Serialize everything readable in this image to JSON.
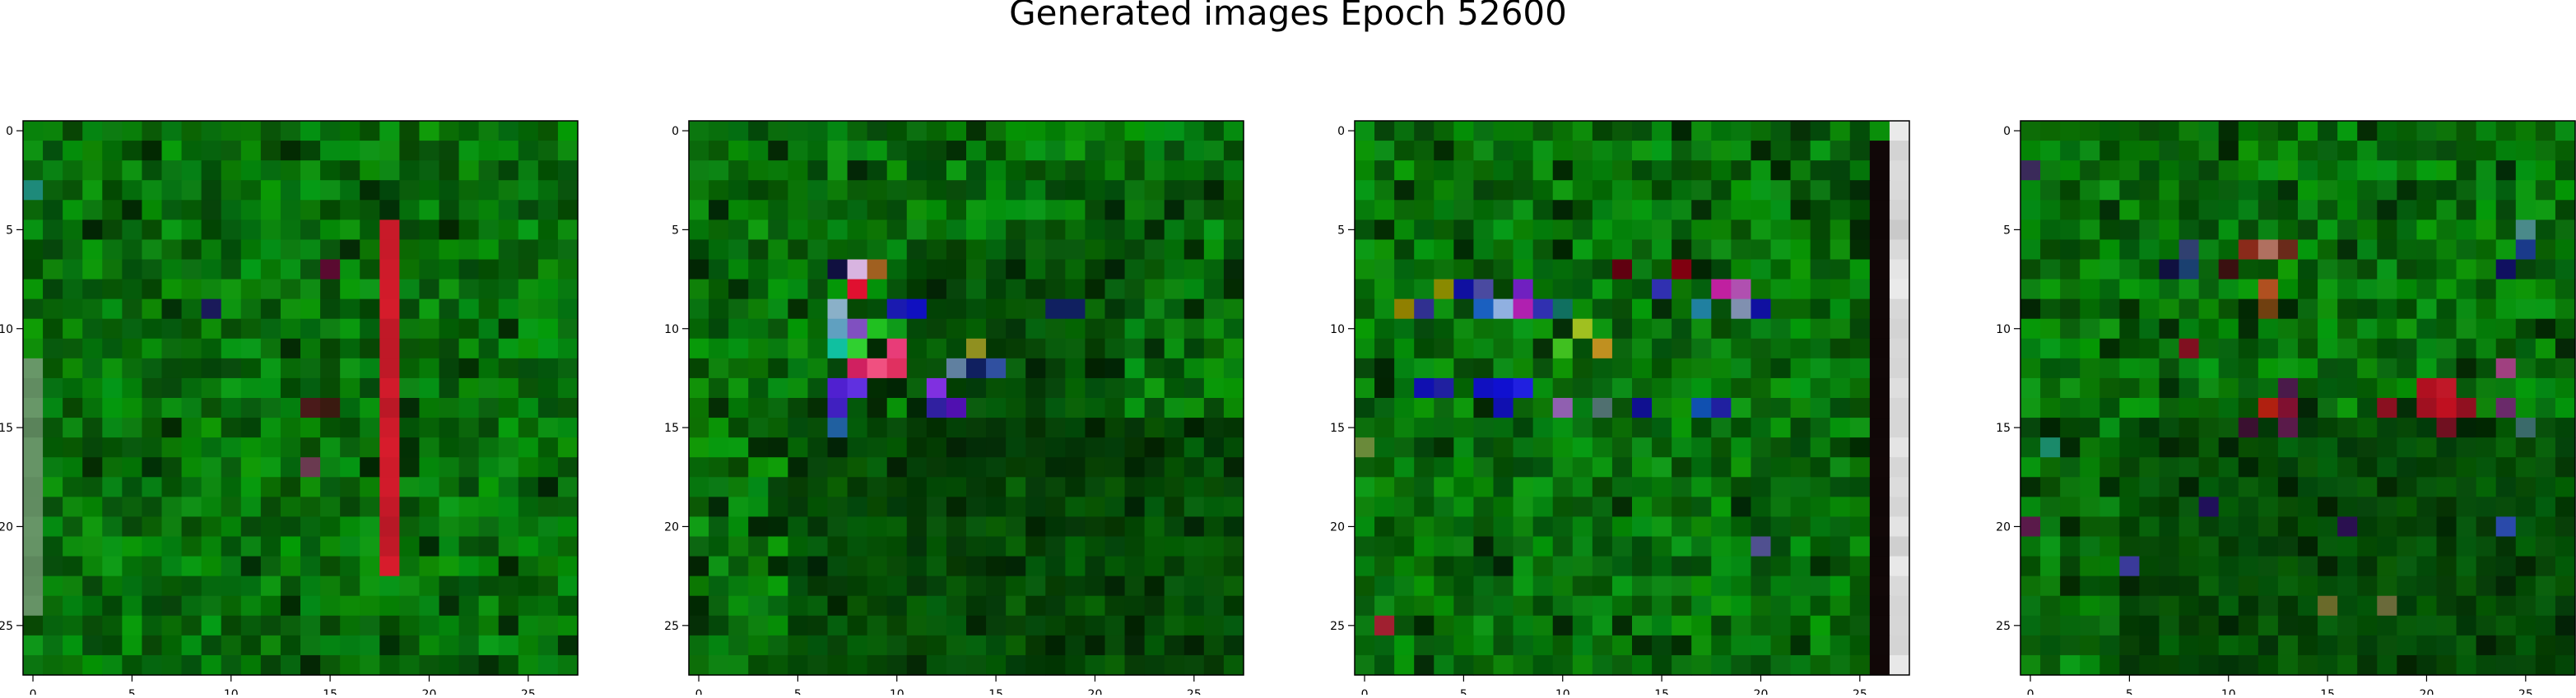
{
  "chart_data": {
    "type": "heatmap",
    "title": "Generated images Epoch 52600",
    "grid": false,
    "image_size": 28,
    "x_ticks": [
      0,
      5,
      10,
      15,
      20,
      25
    ],
    "y_ticks": [
      0,
      5,
      10,
      15,
      20,
      25
    ],
    "xlim": [
      -0.5,
      27.5
    ],
    "ylim": [
      27.5,
      -0.5
    ],
    "colors": {
      "base_green": "#0a5a0a",
      "bright_green": "#12a412",
      "red": "#e01828",
      "blue": "#1010c8",
      "magenta": "#e03c78",
      "pale_pink": "#d8b4e0",
      "white_column": "#eeeeee"
    },
    "panels": [
      {
        "name": "image-1",
        "features": [
          {
            "kind": "column",
            "x": 18,
            "y_from": 5,
            "y_to": 22,
            "color": "#d81c2c"
          },
          {
            "kind": "column",
            "x": 0,
            "y_from": 12,
            "y_to": 24,
            "color": "#6a9a6a"
          },
          {
            "kind": "cell",
            "x": 0,
            "y": 3,
            "color": "#1e8a7a"
          },
          {
            "kind": "cell",
            "x": 14,
            "y": 14,
            "color": "#4a1a1a"
          },
          {
            "kind": "cell",
            "x": 15,
            "y": 14,
            "color": "#3a1a10"
          },
          {
            "kind": "cell",
            "x": 14,
            "y": 17,
            "color": "#6a3a50"
          },
          {
            "kind": "cell",
            "x": 15,
            "y": 7,
            "color": "#5a0a30"
          },
          {
            "kind": "cell",
            "x": 9,
            "y": 9,
            "color": "#1a1a5a"
          }
        ]
      },
      {
        "name": "image-2",
        "features": [
          {
            "kind": "cell",
            "x": 8,
            "y": 7,
            "color": "#d8b4e0"
          },
          {
            "kind": "cell",
            "x": 7,
            "y": 7,
            "color": "#101040"
          },
          {
            "kind": "cell",
            "x": 9,
            "y": 7,
            "color": "#a06020"
          },
          {
            "kind": "cell",
            "x": 8,
            "y": 8,
            "color": "#e01030"
          },
          {
            "kind": "cell",
            "x": 7,
            "y": 9,
            "color": "#8ab0c8"
          },
          {
            "kind": "cell",
            "x": 10,
            "y": 9,
            "color": "#1a1ab0"
          },
          {
            "kind": "cell",
            "x": 11,
            "y": 9,
            "color": "#1010c0"
          },
          {
            "kind": "cell",
            "x": 7,
            "y": 10,
            "color": "#60a0c0"
          },
          {
            "kind": "cell",
            "x": 8,
            "y": 10,
            "color": "#8050c0"
          },
          {
            "kind": "cell",
            "x": 9,
            "y": 10,
            "color": "#20c020"
          },
          {
            "kind": "cell",
            "x": 7,
            "y": 11,
            "color": "#10c0a0"
          },
          {
            "kind": "cell",
            "x": 8,
            "y": 11,
            "color": "#30d030"
          },
          {
            "kind": "cell",
            "x": 10,
            "y": 11,
            "color": "#e83c78"
          },
          {
            "kind": "cell",
            "x": 8,
            "y": 12,
            "color": "#d02060"
          },
          {
            "kind": "cell",
            "x": 9,
            "y": 12,
            "color": "#f05080"
          },
          {
            "kind": "cell",
            "x": 10,
            "y": 12,
            "color": "#e03060"
          },
          {
            "kind": "cell",
            "x": 7,
            "y": 13,
            "color": "#5020d0"
          },
          {
            "kind": "cell",
            "x": 8,
            "y": 13,
            "color": "#6030e0"
          },
          {
            "kind": "cell",
            "x": 7,
            "y": 14,
            "color": "#4020c0"
          },
          {
            "kind": "cell",
            "x": 12,
            "y": 13,
            "color": "#8030e0"
          },
          {
            "kind": "cell",
            "x": 13,
            "y": 12,
            "color": "#6080a0"
          },
          {
            "kind": "cell",
            "x": 14,
            "y": 12,
            "color": "#102060"
          },
          {
            "kind": "cell",
            "x": 13,
            "y": 14,
            "color": "#5010b0"
          },
          {
            "kind": "cell",
            "x": 12,
            "y": 14,
            "color": "#3020a0"
          },
          {
            "kind": "cell",
            "x": 14,
            "y": 11,
            "color": "#909020"
          },
          {
            "kind": "cell",
            "x": 15,
            "y": 12,
            "color": "#3050a0"
          },
          {
            "kind": "cell",
            "x": 7,
            "y": 15,
            "color": "#2060a0"
          },
          {
            "kind": "cell",
            "x": 18,
            "y": 9,
            "color": "#102060"
          },
          {
            "kind": "cell",
            "x": 19,
            "y": 9,
            "color": "#102060"
          }
        ]
      },
      {
        "name": "image-3",
        "features": [
          {
            "kind": "column",
            "x": 27,
            "y_from": 0,
            "y_to": 27,
            "color": "#ececec"
          },
          {
            "kind": "column",
            "x": 26,
            "y_from": 1,
            "y_to": 27,
            "color": "#120808"
          },
          {
            "kind": "cell",
            "x": 2,
            "y": 9,
            "color": "#908000"
          },
          {
            "kind": "cell",
            "x": 3,
            "y": 9,
            "color": "#303090"
          },
          {
            "kind": "cell",
            "x": 4,
            "y": 8,
            "color": "#8a8a00"
          },
          {
            "kind": "cell",
            "x": 5,
            "y": 8,
            "color": "#1010a0"
          },
          {
            "kind": "cell",
            "x": 6,
            "y": 8,
            "color": "#4a4aa0"
          },
          {
            "kind": "cell",
            "x": 6,
            "y": 9,
            "color": "#1a60c0"
          },
          {
            "kind": "cell",
            "x": 7,
            "y": 9,
            "color": "#90b0e0"
          },
          {
            "kind": "cell",
            "x": 8,
            "y": 8,
            "color": "#7020c0"
          },
          {
            "kind": "cell",
            "x": 8,
            "y": 9,
            "color": "#b020b0"
          },
          {
            "kind": "cell",
            "x": 9,
            "y": 9,
            "color": "#3030b0"
          },
          {
            "kind": "cell",
            "x": 10,
            "y": 9,
            "color": "#107060"
          },
          {
            "kind": "cell",
            "x": 11,
            "y": 10,
            "color": "#a0c020"
          },
          {
            "kind": "cell",
            "x": 10,
            "y": 11,
            "color": "#40c020"
          },
          {
            "kind": "cell",
            "x": 12,
            "y": 11,
            "color": "#c09020"
          },
          {
            "kind": "cell",
            "x": 15,
            "y": 8,
            "color": "#3030b0"
          },
          {
            "kind": "cell",
            "x": 18,
            "y": 8,
            "color": "#c020a0"
          },
          {
            "kind": "cell",
            "x": 19,
            "y": 8,
            "color": "#b050b0"
          },
          {
            "kind": "cell",
            "x": 19,
            "y": 9,
            "color": "#8090b0"
          },
          {
            "kind": "cell",
            "x": 20,
            "y": 9,
            "color": "#1010a0"
          },
          {
            "kind": "cell",
            "x": 17,
            "y": 9,
            "color": "#2080a0"
          },
          {
            "kind": "cell",
            "x": 13,
            "y": 7,
            "color": "#600010"
          },
          {
            "kind": "cell",
            "x": 16,
            "y": 7,
            "color": "#800010"
          },
          {
            "kind": "cell",
            "x": 3,
            "y": 13,
            "color": "#1010b0"
          },
          {
            "kind": "cell",
            "x": 4,
            "y": 13,
            "color": "#2020a0"
          },
          {
            "kind": "cell",
            "x": 6,
            "y": 13,
            "color": "#1010c0"
          },
          {
            "kind": "cell",
            "x": 7,
            "y": 13,
            "color": "#1010d0"
          },
          {
            "kind": "cell",
            "x": 8,
            "y": 13,
            "color": "#2020e0"
          },
          {
            "kind": "cell",
            "x": 7,
            "y": 14,
            "color": "#1010b0"
          },
          {
            "kind": "cell",
            "x": 10,
            "y": 14,
            "color": "#9060b0"
          },
          {
            "kind": "cell",
            "x": 12,
            "y": 14,
            "color": "#507070"
          },
          {
            "kind": "cell",
            "x": 14,
            "y": 14,
            "color": "#101090"
          },
          {
            "kind": "cell",
            "x": 17,
            "y": 14,
            "color": "#1050b0"
          },
          {
            "kind": "cell",
            "x": 18,
            "y": 14,
            "color": "#2020a0"
          },
          {
            "kind": "cell",
            "x": 0,
            "y": 16,
            "color": "#6a8a3a"
          },
          {
            "kind": "cell",
            "x": 1,
            "y": 25,
            "color": "#a02030"
          },
          {
            "kind": "cell",
            "x": 20,
            "y": 21,
            "color": "#505090"
          }
        ]
      },
      {
        "name": "image-4",
        "features": [
          {
            "kind": "cell",
            "x": 0,
            "y": 2,
            "color": "#3a2a5a"
          },
          {
            "kind": "cell",
            "x": 8,
            "y": 7,
            "color": "#1a4070"
          },
          {
            "kind": "cell",
            "x": 7,
            "y": 7,
            "color": "#101040"
          },
          {
            "kind": "cell",
            "x": 8,
            "y": 6,
            "color": "#304070"
          },
          {
            "kind": "cell",
            "x": 11,
            "y": 6,
            "color": "#8a2a1a"
          },
          {
            "kind": "cell",
            "x": 12,
            "y": 6,
            "color": "#b07060"
          },
          {
            "kind": "cell",
            "x": 13,
            "y": 6,
            "color": "#6a2a1a"
          },
          {
            "kind": "cell",
            "x": 10,
            "y": 7,
            "color": "#3a1010"
          },
          {
            "kind": "cell",
            "x": 12,
            "y": 8,
            "color": "#b05020"
          },
          {
            "kind": "cell",
            "x": 12,
            "y": 9,
            "color": "#704010"
          },
          {
            "kind": "cell",
            "x": 8,
            "y": 11,
            "color": "#801020"
          },
          {
            "kind": "cell",
            "x": 12,
            "y": 14,
            "color": "#b02010"
          },
          {
            "kind": "cell",
            "x": 13,
            "y": 14,
            "color": "#801030"
          },
          {
            "kind": "cell",
            "x": 13,
            "y": 13,
            "color": "#4a1a4a"
          },
          {
            "kind": "cell",
            "x": 13,
            "y": 15,
            "color": "#5a1a4a"
          },
          {
            "kind": "cell",
            "x": 11,
            "y": 15,
            "color": "#3a1030"
          },
          {
            "kind": "cell",
            "x": 18,
            "y": 14,
            "color": "#8a1020"
          },
          {
            "kind": "cell",
            "x": 20,
            "y": 13,
            "color": "#b01020"
          },
          {
            "kind": "cell",
            "x": 21,
            "y": 13,
            "color": "#c01828"
          },
          {
            "kind": "cell",
            "x": 20,
            "y": 14,
            "color": "#a01020"
          },
          {
            "kind": "cell",
            "x": 21,
            "y": 14,
            "color": "#c01020"
          },
          {
            "kind": "cell",
            "x": 22,
            "y": 14,
            "color": "#901020"
          },
          {
            "kind": "cell",
            "x": 21,
            "y": 15,
            "color": "#701020"
          },
          {
            "kind": "cell",
            "x": 24,
            "y": 12,
            "color": "#a04080"
          },
          {
            "kind": "cell",
            "x": 24,
            "y": 14,
            "color": "#6a2a6a"
          },
          {
            "kind": "cell",
            "x": 25,
            "y": 5,
            "color": "#4a8a8a"
          },
          {
            "kind": "cell",
            "x": 25,
            "y": 6,
            "color": "#1a3a8a"
          },
          {
            "kind": "cell",
            "x": 24,
            "y": 7,
            "color": "#101060"
          },
          {
            "kind": "cell",
            "x": 25,
            "y": 15,
            "color": "#3a6a6a"
          },
          {
            "kind": "cell",
            "x": 24,
            "y": 20,
            "color": "#2a4aaa"
          },
          {
            "kind": "cell",
            "x": 1,
            "y": 16,
            "color": "#1a8a6a"
          },
          {
            "kind": "cell",
            "x": 0,
            "y": 20,
            "color": "#5a1a4a"
          },
          {
            "kind": "cell",
            "x": 5,
            "y": 22,
            "color": "#3a3a9a"
          },
          {
            "kind": "cell",
            "x": 15,
            "y": 24,
            "color": "#6a6a2a"
          },
          {
            "kind": "cell",
            "x": 18,
            "y": 24,
            "color": "#6a6a3a"
          },
          {
            "kind": "cell",
            "x": 16,
            "y": 20,
            "color": "#2a1050"
          },
          {
            "kind": "cell",
            "x": 9,
            "y": 19,
            "color": "#20105a"
          }
        ]
      }
    ]
  }
}
